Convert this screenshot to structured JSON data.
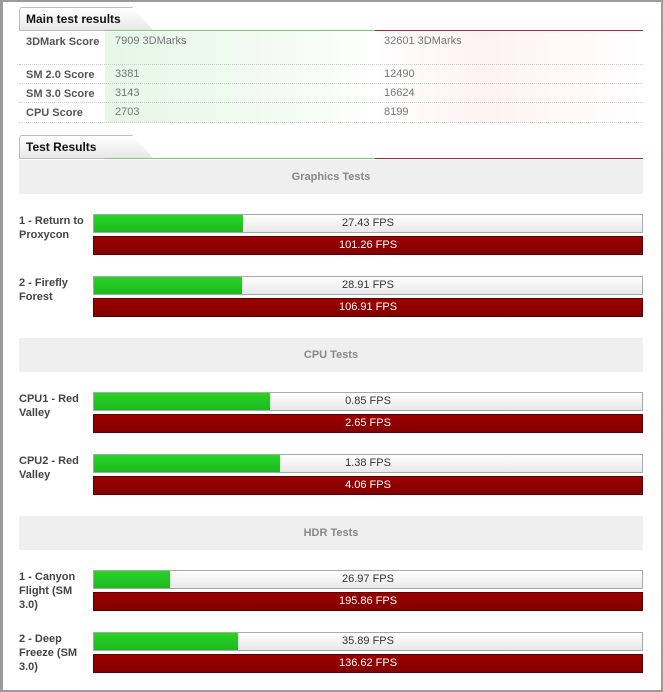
{
  "main_section": {
    "title": "Main test results",
    "rows": [
      {
        "label": "3DMark Score",
        "value_a": "7909 3DMarks",
        "value_b": "32601 3DMarks"
      },
      {
        "label": "SM 2.0 Score",
        "value_a": "3381",
        "value_b": "12490"
      },
      {
        "label": "SM 3.0 Score",
        "value_a": "3143",
        "value_b": "16624"
      },
      {
        "label": "CPU Score",
        "value_a": "2703",
        "value_b": "8199"
      }
    ]
  },
  "results_section": {
    "title": "Test Results",
    "categories": [
      {
        "title": "Graphics Tests",
        "tests": [
          {
            "label": "1 - Return to Proxycon",
            "green_text": "27.43 FPS",
            "red_text": "101.26 FPS",
            "green_fraction": 0.271
          },
          {
            "label": "2 - Firefly Forest",
            "green_text": "28.91 FPS",
            "red_text": "106.91 FPS",
            "green_fraction": 0.27
          }
        ]
      },
      {
        "title": "CPU Tests",
        "tests": [
          {
            "label": "CPU1 - Red Valley",
            "green_text": "0.85 FPS",
            "red_text": "2.65 FPS",
            "green_fraction": 0.321
          },
          {
            "label": "CPU2 - Red Valley",
            "green_text": "1.38 FPS",
            "red_text": "4.06 FPS",
            "green_fraction": 0.34
          }
        ]
      },
      {
        "title": "HDR Tests",
        "tests": [
          {
            "label": "1 - Canyon Flight (SM 3.0)",
            "green_text": "26.97 FPS",
            "red_text": "195.86 FPS",
            "green_fraction": 0.138
          },
          {
            "label": "2 - Deep Freeze (SM 3.0)",
            "green_text": "35.89 FPS",
            "red_text": "136.62 FPS",
            "green_fraction": 0.263
          }
        ]
      }
    ]
  },
  "colors": {
    "green_bar": "#22c822",
    "red_bar": "#8f0000",
    "rule_red": "#b5262a",
    "band_bg": "#efefef"
  }
}
